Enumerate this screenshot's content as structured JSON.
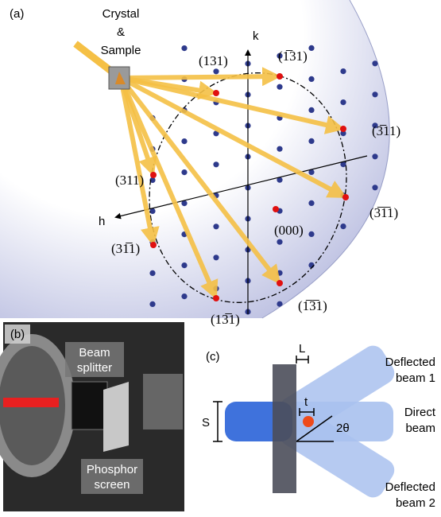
{
  "panel_a": {
    "label": "(a)",
    "crystal_label": [
      "Crystal",
      "&",
      "Sample"
    ],
    "axis_k": "k",
    "axis_h": "h",
    "reflections": [
      "(131)",
      "(1̅31)",
      "(3̅11)",
      "(311)",
      "(3̅1̅1)",
      "(000)",
      "(31̅1)",
      "(13̅1)",
      "(1̅3̅1)"
    ]
  },
  "panel_b": {
    "label": "(b)",
    "beam_splitter": [
      "Beam",
      "splitter"
    ],
    "phosphor_screen": [
      "Phosphor",
      "screen"
    ]
  },
  "panel_c": {
    "label": "(c)",
    "L": "L",
    "S": "S",
    "t": "t",
    "angle": "2θ",
    "deflected_1": [
      "Deflected",
      "beam 1"
    ],
    "direct": [
      "Direct",
      "beam"
    ],
    "deflected_2": [
      "Deflected",
      "beam 2"
    ]
  }
}
